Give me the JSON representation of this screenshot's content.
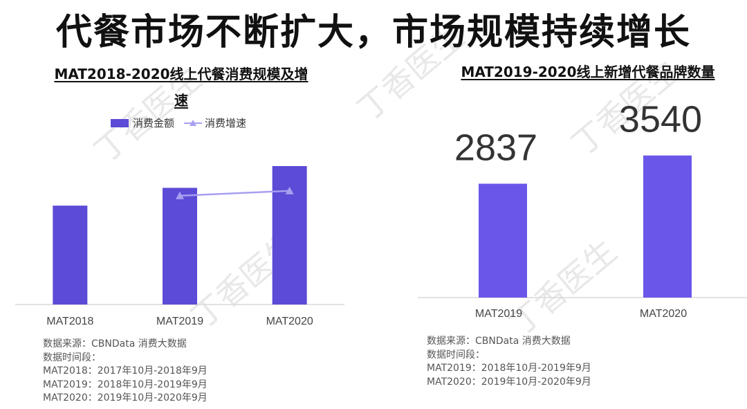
{
  "title": "代餐市场不断扩大，市场规模持续增长",
  "watermark": "丁香医生",
  "left_chart": {
    "title_line1": "MAT2018-2020线上代餐消费规模及增",
    "title_line2": "速",
    "legend": {
      "bar_label": "消费金额",
      "line_label": "消费增速"
    },
    "notes": {
      "source": "数据来源：CBNData 消费大数据",
      "period_label": "数据时间段：",
      "mat2018": "MAT2018：2017年10月-2018年9月",
      "mat2019": "MAT2019：2018年10月-2019年9月",
      "mat2020": "MAT2020：2019年10月-2020年9月"
    }
  },
  "right_chart": {
    "title": "MAT2019-2020线上新增代餐品牌数量",
    "notes": {
      "source": "数据来源：CBNData 消费大数据",
      "period_label": "数据时间段：",
      "mat2019": "MAT2019：2018年10月-2019年9月",
      "mat2020": "MAT2020：2019年10月-2020年9月"
    }
  },
  "colors": {
    "bar_left": "#5b4bd6",
    "line": "#a79ff0",
    "bar_right": "#6a57ea",
    "axis": "#d9d9d9"
  },
  "chart_data": [
    {
      "type": "bar",
      "categories": [
        "MAT2018",
        "MAT2019",
        "MAT2020"
      ],
      "series": [
        {
          "name": "消费金额",
          "type": "bar",
          "values": [
            1.0,
            1.18,
            1.4
          ]
        },
        {
          "name": "消费增速",
          "type": "line",
          "values": [
            null,
            1.1,
            1.15
          ]
        }
      ],
      "ylim": [
        0,
        2.1
      ],
      "y_axis_shown": false,
      "grid": false,
      "legend_position": "top-left"
    },
    {
      "type": "bar",
      "categories": [
        "MAT2019",
        "MAT2020"
      ],
      "values": [
        2837,
        3540
      ],
      "data_labels": [
        "2837",
        "3540"
      ],
      "ylim": [
        0,
        5000
      ],
      "y_axis_shown": false,
      "grid": false
    }
  ]
}
